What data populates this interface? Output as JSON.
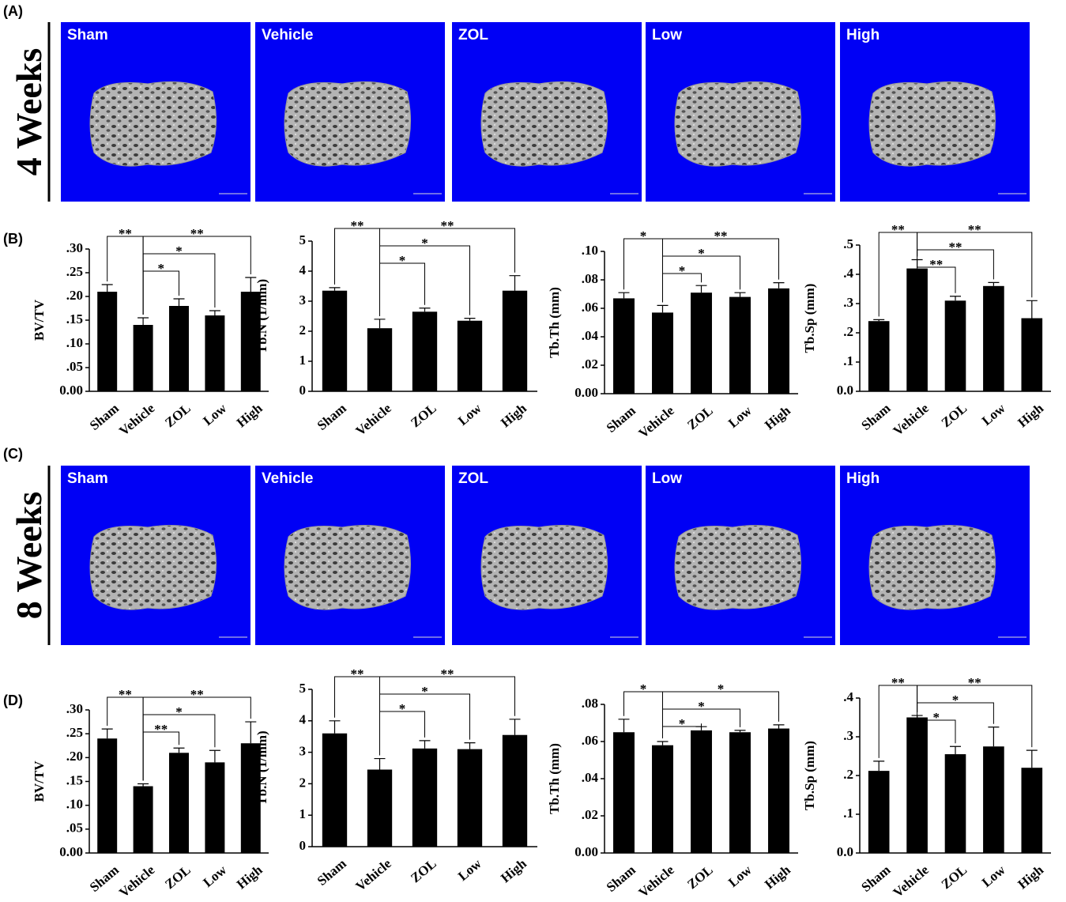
{
  "panel_labels": [
    "(A)",
    "(B)",
    "(C)",
    "(D)"
  ],
  "image_rows": [
    {
      "label": "4 Weeks",
      "images": [
        "Sham",
        "Vehicle",
        "ZOL",
        "Low",
        "High"
      ]
    },
    {
      "label": "8 Weeks",
      "images": [
        "Sham",
        "Vehicle",
        "ZOL",
        "Low",
        "High"
      ]
    }
  ],
  "chart_data": [
    {
      "type": "bar",
      "ylabel": "BV/TV",
      "color": "#000000",
      "categories": [
        "Sham",
        "Vehicle",
        "ZOL",
        "Low",
        "High"
      ],
      "values": [
        0.21,
        0.14,
        0.18,
        0.16,
        0.21
      ],
      "errors": [
        0.015,
        0.015,
        0.015,
        0.01,
        0.03
      ],
      "ylim": [
        0,
        0.3
      ],
      "yticks": [
        {
          "value": 0,
          "label": "0.00"
        },
        {
          "value": 0.05,
          "label": ".05"
        },
        {
          "value": 0.1,
          "label": ".10"
        },
        {
          "value": 0.15,
          "label": ".15"
        },
        {
          "value": 0.2,
          "label": ".20"
        },
        {
          "value": 0.25,
          "label": ".25"
        },
        {
          "value": 0.3,
          "label": ".30"
        }
      ],
      "comparisons": [
        {
          "between": [
            "Sham",
            "Vehicle"
          ],
          "label": "**"
        },
        {
          "between": [
            "Vehicle",
            "ZOL"
          ],
          "label": "*"
        },
        {
          "between": [
            "Vehicle",
            "Low"
          ],
          "label": "*"
        },
        {
          "between": [
            "Vehicle",
            "High"
          ],
          "label": "**"
        }
      ]
    },
    {
      "type": "bar",
      "ylabel": "Tb.N (1/mm)",
      "color": "#000000",
      "categories": [
        "Sham",
        "Vehicle",
        "ZOL",
        "Low",
        "High"
      ],
      "values": [
        3.35,
        2.1,
        2.65,
        2.35,
        3.35
      ],
      "errors": [
        0.1,
        0.3,
        0.12,
        0.08,
        0.5
      ],
      "ylim": [
        0,
        5
      ],
      "yticks": [
        0,
        1,
        2,
        3,
        4,
        5
      ],
      "comparisons": [
        {
          "between": [
            "Sham",
            "Vehicle"
          ],
          "label": "**"
        },
        {
          "between": [
            "Vehicle",
            "ZOL"
          ],
          "label": "*"
        },
        {
          "between": [
            "Vehicle",
            "Low"
          ],
          "label": "*"
        },
        {
          "between": [
            "Vehicle",
            "High"
          ],
          "label": "**"
        }
      ]
    },
    {
      "type": "bar",
      "ylabel": "Tb.Th (mm)",
      "color": "#000000",
      "categories": [
        "Sham",
        "Vehicle",
        "ZOL",
        "Low",
        "High"
      ],
      "values": [
        0.067,
        0.057,
        0.071,
        0.068,
        0.074
      ],
      "errors": [
        0.004,
        0.005,
        0.005,
        0.003,
        0.004
      ],
      "ylim": [
        0,
        0.1
      ],
      "yticks": [
        {
          "value": 0,
          "label": "0.00"
        },
        {
          "value": 0.02,
          "label": ".02"
        },
        {
          "value": 0.04,
          "label": ".04"
        },
        {
          "value": 0.06,
          "label": ".06"
        },
        {
          "value": 0.08,
          "label": ".08"
        },
        {
          "value": 0.1,
          "label": ".10"
        }
      ],
      "comparisons": [
        {
          "between": [
            "Sham",
            "Vehicle"
          ],
          "label": "*"
        },
        {
          "between": [
            "Vehicle",
            "ZOL"
          ],
          "label": "*"
        },
        {
          "between": [
            "Vehicle",
            "Low"
          ],
          "label": "*"
        },
        {
          "between": [
            "Vehicle",
            "High"
          ],
          "label": "**"
        }
      ]
    },
    {
      "type": "bar",
      "ylabel": "Tb.Sp (mm)",
      "color": "#000000",
      "categories": [
        "Sham",
        "Vehicle",
        "ZOL",
        "Low",
        "High"
      ],
      "values": [
        0.24,
        0.42,
        0.31,
        0.36,
        0.25
      ],
      "errors": [
        0.005,
        0.03,
        0.015,
        0.012,
        0.06
      ],
      "ylim": [
        0,
        0.5
      ],
      "yticks": [
        {
          "value": 0,
          "label": "0.0"
        },
        {
          "value": 0.1,
          "label": ".1"
        },
        {
          "value": 0.2,
          "label": ".2"
        },
        {
          "value": 0.3,
          "label": ".3"
        },
        {
          "value": 0.4,
          "label": ".4"
        },
        {
          "value": 0.5,
          "label": ".5"
        }
      ],
      "comparisons": [
        {
          "between": [
            "Sham",
            "Vehicle"
          ],
          "label": "**"
        },
        {
          "between": [
            "Vehicle",
            "ZOL"
          ],
          "label": "**"
        },
        {
          "between": [
            "Vehicle",
            "Low"
          ],
          "label": "**"
        },
        {
          "between": [
            "Vehicle",
            "High"
          ],
          "label": "**"
        }
      ]
    },
    {
      "type": "bar",
      "ylabel": "BV/TV",
      "color": "#000000",
      "categories": [
        "Sham",
        "Vehicle",
        "ZOL",
        "Low",
        "High"
      ],
      "values": [
        0.24,
        0.14,
        0.21,
        0.19,
        0.23
      ],
      "errors": [
        0.02,
        0.005,
        0.01,
        0.025,
        0.045
      ],
      "ylim": [
        0,
        0.3
      ],
      "yticks": [
        {
          "value": 0,
          "label": "0.00"
        },
        {
          "value": 0.05,
          "label": ".05"
        },
        {
          "value": 0.1,
          "label": ".10"
        },
        {
          "value": 0.15,
          "label": ".15"
        },
        {
          "value": 0.2,
          "label": ".20"
        },
        {
          "value": 0.25,
          "label": ".25"
        },
        {
          "value": 0.3,
          "label": ".30"
        }
      ],
      "comparisons": [
        {
          "between": [
            "Sham",
            "Vehicle"
          ],
          "label": "**"
        },
        {
          "between": [
            "Vehicle",
            "ZOL"
          ],
          "label": "**"
        },
        {
          "between": [
            "Vehicle",
            "Low"
          ],
          "label": "*"
        },
        {
          "between": [
            "Vehicle",
            "High"
          ],
          "label": "**"
        }
      ]
    },
    {
      "type": "bar",
      "ylabel": "Tb.N (1/mm)",
      "color": "#000000",
      "categories": [
        "Sham",
        "Vehicle",
        "ZOL",
        "Low",
        "High"
      ],
      "values": [
        3.6,
        2.45,
        3.12,
        3.1,
        3.55
      ],
      "errors": [
        0.4,
        0.35,
        0.25,
        0.2,
        0.5
      ],
      "ylim": [
        0,
        5
      ],
      "yticks": [
        0,
        1,
        2,
        3,
        4,
        5
      ],
      "comparisons": [
        {
          "between": [
            "Sham",
            "Vehicle"
          ],
          "label": "**"
        },
        {
          "between": [
            "Vehicle",
            "ZOL"
          ],
          "label": "*"
        },
        {
          "between": [
            "Vehicle",
            "Low"
          ],
          "label": "*"
        },
        {
          "between": [
            "Vehicle",
            "High"
          ],
          "label": "**"
        }
      ]
    },
    {
      "type": "bar",
      "ylabel": "Tb.Th (mm)",
      "color": "#000000",
      "categories": [
        "Sham",
        "Vehicle",
        "ZOL",
        "Low",
        "High"
      ],
      "values": [
        0.065,
        0.058,
        0.066,
        0.065,
        0.067
      ],
      "errors": [
        0.007,
        0.002,
        0.002,
        0.001,
        0.002
      ],
      "ylim": [
        0,
        0.08
      ],
      "yticks": [
        {
          "value": 0,
          "label": "0.00"
        },
        {
          "value": 0.02,
          "label": ".02"
        },
        {
          "value": 0.04,
          "label": ".04"
        },
        {
          "value": 0.06,
          "label": ".06"
        },
        {
          "value": 0.08,
          "label": ".08"
        }
      ],
      "comparisons": [
        {
          "between": [
            "Sham",
            "Vehicle"
          ],
          "label": "*"
        },
        {
          "between": [
            "Vehicle",
            "ZOL"
          ],
          "label": "*"
        },
        {
          "between": [
            "Vehicle",
            "Low"
          ],
          "label": "*"
        },
        {
          "between": [
            "Vehicle",
            "High"
          ],
          "label": "*"
        }
      ]
    },
    {
      "type": "bar",
      "ylabel": "Tb.Sp (mm)",
      "color": "#000000",
      "categories": [
        "Sham",
        "Vehicle",
        "ZOL",
        "Low",
        "High"
      ],
      "values": [
        0.212,
        0.35,
        0.255,
        0.275,
        0.22
      ],
      "errors": [
        0.025,
        0.005,
        0.02,
        0.05,
        0.045
      ],
      "ylim": [
        0,
        0.4
      ],
      "yticks": [
        {
          "value": 0,
          "label": "0.0"
        },
        {
          "value": 0.1,
          "label": ".1"
        },
        {
          "value": 0.2,
          "label": ".2"
        },
        {
          "value": 0.3,
          "label": ".3"
        },
        {
          "value": 0.4,
          "label": ".4"
        }
      ],
      "comparisons": [
        {
          "between": [
            "Sham",
            "Vehicle"
          ],
          "label": "**"
        },
        {
          "between": [
            "Vehicle",
            "ZOL"
          ],
          "label": "*"
        },
        {
          "between": [
            "Vehicle",
            "Low"
          ],
          "label": "*"
        },
        {
          "between": [
            "Vehicle",
            "High"
          ],
          "label": "**"
        }
      ]
    }
  ]
}
